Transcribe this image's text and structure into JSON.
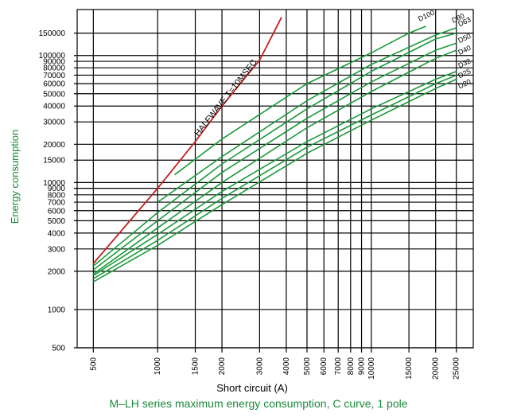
{
  "chart_data": {
    "type": "line",
    "title": "",
    "caption": "M–LH series maximum energy consumption, C curve, 1 pole",
    "xlabel": "Short circuit (A)",
    "ylabel": "Energy consumption",
    "xscale": "log",
    "yscale": "log",
    "xlim": [
      420,
      30000
    ],
    "ylim": [
      500,
      230000
    ],
    "grid": true,
    "x_ticks": [
      500,
      1000,
      1500,
      2000,
      3000,
      4000,
      5000,
      6000,
      7000,
      8000,
      9000,
      10000,
      15000,
      20000,
      25000
    ],
    "x_tick_labels": [
      "500",
      "1000",
      "1500",
      "2000",
      "3000",
      "4000",
      "5000",
      "6000",
      "7000",
      "8000",
      "9000",
      "10000",
      "15000",
      "20000",
      "25000"
    ],
    "y_ticks": [
      500,
      1000,
      2000,
      3000,
      4000,
      5000,
      6000,
      7000,
      8000,
      9000,
      10000,
      15000,
      20000,
      30000,
      40000,
      50000,
      60000,
      70000,
      80000,
      90000,
      100000,
      150000
    ],
    "y_tick_labels": [
      "500",
      "1000",
      "2000",
      "3000",
      "4000",
      "5000",
      "6000",
      "7000",
      "8000",
      "9000",
      "10000",
      "15000",
      "20000",
      "30000",
      "40000",
      "50000",
      "60000",
      "70000",
      "80000",
      "90000",
      "100000",
      "150000"
    ],
    "reference": {
      "label": "HALFWAVE T=10MSEC",
      "color": "#c0201e",
      "points": [
        [
          500,
          2300
        ],
        [
          1000,
          9000
        ],
        [
          1500,
          21000
        ],
        [
          2000,
          40000
        ],
        [
          3000,
          92000
        ],
        [
          3800,
          200000
        ]
      ]
    },
    "series": [
      {
        "name": "D100",
        "color": "#1a9a3a",
        "points": [
          [
            1200,
            11500
          ],
          [
            2000,
            22000
          ],
          [
            5000,
            60000
          ],
          [
            10000,
            105000
          ],
          [
            15000,
            150000
          ],
          [
            18000,
            170000
          ]
        ]
      },
      {
        "name": "D80",
        "color": "#1a9a3a",
        "points": [
          [
            1000,
            7000
          ],
          [
            2000,
            16000
          ],
          [
            5000,
            44000
          ],
          [
            10000,
            85000
          ],
          [
            20000,
            145000
          ],
          [
            25000,
            165000
          ]
        ]
      },
      {
        "name": "D63",
        "color": "#1a9a3a",
        "points": [
          [
            500,
            2200
          ],
          [
            1000,
            5800
          ],
          [
            2000,
            14000
          ],
          [
            5000,
            38000
          ],
          [
            10000,
            75000
          ],
          [
            20000,
            135000
          ],
          [
            25000,
            150000
          ]
        ]
      },
      {
        "name": "D50",
        "color": "#1a9a3a",
        "points": [
          [
            500,
            2050
          ],
          [
            1000,
            5000
          ],
          [
            2000,
            12000
          ],
          [
            5000,
            32000
          ],
          [
            10000,
            62000
          ],
          [
            20000,
            110000
          ],
          [
            25000,
            125000
          ]
        ]
      },
      {
        "name": "D40",
        "color": "#1a9a3a",
        "points": [
          [
            500,
            1900
          ],
          [
            1000,
            4400
          ],
          [
            2000,
            10000
          ],
          [
            5000,
            27000
          ],
          [
            10000,
            52000
          ],
          [
            20000,
            95000
          ],
          [
            25000,
            110000
          ]
        ]
      },
      {
        "name": "D32",
        "color": "#1a9a3a",
        "points": [
          [
            500,
            1850
          ],
          [
            1000,
            3900
          ],
          [
            2000,
            8500
          ],
          [
            5000,
            21000
          ],
          [
            10000,
            38000
          ],
          [
            20000,
            65000
          ],
          [
            25000,
            75000
          ]
        ]
      },
      {
        "name": "D25",
        "color": "#1a9a3a",
        "points": [
          [
            500,
            1750
          ],
          [
            1000,
            3500
          ],
          [
            2000,
            7500
          ],
          [
            5000,
            19000
          ],
          [
            10000,
            34000
          ],
          [
            20000,
            60000
          ],
          [
            25000,
            70000
          ]
        ]
      },
      {
        "name": "D20",
        "color": "#1a9a3a",
        "points": [
          [
            500,
            1650
          ],
          [
            1000,
            3200
          ],
          [
            2000,
            6700
          ],
          [
            5000,
            17000
          ],
          [
            10000,
            31000
          ],
          [
            20000,
            55000
          ],
          [
            25000,
            65000
          ]
        ]
      }
    ]
  }
}
